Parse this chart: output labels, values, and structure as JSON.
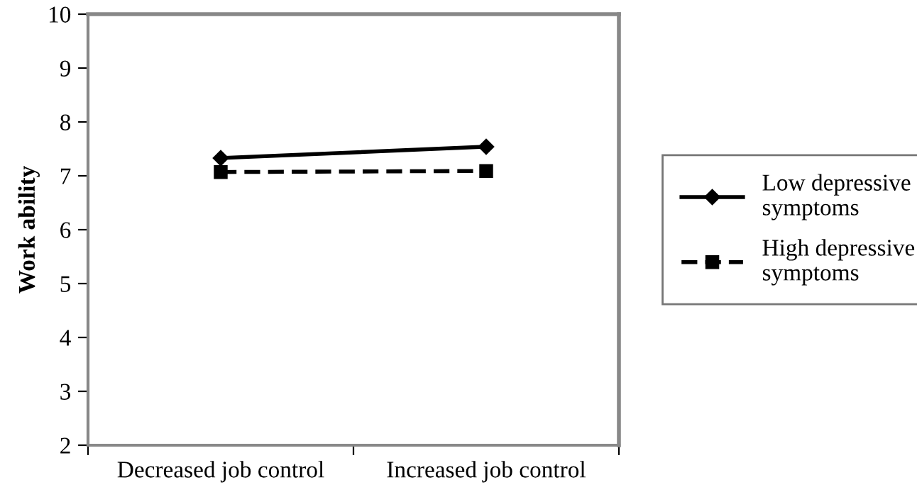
{
  "chart_data": {
    "type": "line",
    "ylabel": "Work ability",
    "categories": [
      "Decreased job control",
      "Increased job control"
    ],
    "series": [
      {
        "name": "Low depressive symptoms",
        "color": "#000000",
        "values": [
          7.33,
          7.54
        ],
        "marker": "diamond",
        "line_style": "solid"
      },
      {
        "name": "High depressive symptoms",
        "color": "#000000",
        "values": [
          7.07,
          7.09
        ],
        "marker": "square",
        "line_style": "dashed"
      }
    ],
    "ylim": [
      2,
      10
    ],
    "yticks": [
      2,
      3,
      4,
      5,
      6,
      7,
      8,
      9,
      10
    ],
    "grid": false,
    "legend": "right"
  }
}
